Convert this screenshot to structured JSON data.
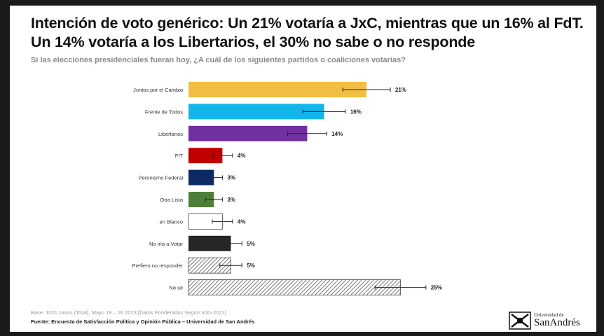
{
  "header": {
    "title": "Intención de voto genérico: Un 21% votaría a JxC, mientras que un 16% al FdT. Un 14% votaría a los Libertarios, el 30% no sabe o no responde",
    "subtitle": "Si las elecciones presidenciales fueran hoy, ¿A cuál de los siguientes partidos o coaliciones votarías?"
  },
  "footer": {
    "base": "Base: 1001 casos (Total), Mayo 19 – 26 2023 [Datos Ponderados Según Voto 2021]",
    "source": "Fuente: Encuesta de Satisfacción Política y Opinión Pública – Universidad de San Andrés"
  },
  "logo": {
    "top": "Universidad de",
    "main": "SanAndrés"
  },
  "chart_data": {
    "type": "bar",
    "orientation": "horizontal",
    "unit": "%",
    "error_bars": true,
    "categories": [
      "Juntos por el Cambio",
      "Frente de Todos",
      "Libertarios",
      "FIT",
      "Peronismo Federal",
      "Otra Lista",
      "en Blanco",
      "No iría a Votar",
      "Prefiero no responder",
      "No sé"
    ],
    "values": [
      21,
      16,
      14,
      4,
      3,
      3,
      4,
      5,
      5,
      25
    ],
    "labels": [
      "21%",
      "16%",
      "14%",
      "4%",
      "3%",
      "3%",
      "4%",
      "5%",
      "5%",
      "25%"
    ],
    "error_margin": [
      2.8,
      2.5,
      2.3,
      1.2,
      1.0,
      1.0,
      1.2,
      1.3,
      1.3,
      3.0
    ],
    "colors": [
      "#F1BE42",
      "#13B5EA",
      "#7030A0",
      "#C00000",
      "#0D2A63",
      "#4E7F3A",
      "#FFFFFF",
      "#262626",
      "hatch",
      "hatch"
    ],
    "xlim": [
      0,
      27
    ]
  }
}
